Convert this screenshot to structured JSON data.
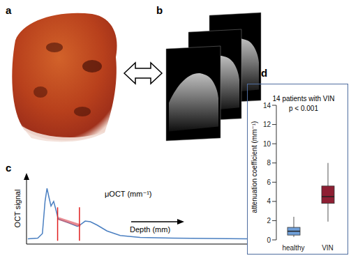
{
  "panels": [
    {
      "label": "a"
    },
    {
      "label": "b"
    }
  ],
  "chart_data": [
    {
      "label": "c",
      "type": "line",
      "y_label": "OCT signal",
      "x_label": "Depth (mm)",
      "annotation": "μOCT (mm⁻¹)",
      "x": [
        0.6,
        5.1,
        7.2,
        8.4,
        9.3,
        10.2,
        11.1,
        12.3,
        13.2,
        14.4,
        18.6,
        23.1,
        24.6,
        26.6,
        29.0,
        32.0,
        36.5,
        42.5,
        51.5,
        66.5,
        100
      ],
      "values": [
        0.8,
        0.9,
        1.6,
        6.5,
        8.5,
        7.1,
        5.8,
        6.5,
        5.4,
        3.8,
        3.3,
        2.7,
        3.0,
        3.5,
        3.4,
        2.9,
        2.0,
        1.3,
        1.0,
        0.9,
        0.8
      ],
      "color": "#4a7fc1",
      "xlim": [
        0,
        100
      ],
      "ylim": [
        0,
        10
      ],
      "tick_labels": false,
      "fit": {
        "x": [
          14.5,
          24.5
        ],
        "values": [
          3.9,
          2.8
        ],
        "color": "#e05a64"
      },
      "window": {
        "x": [
          14.1,
          24.0
        ],
        "y": [
          0.5,
          5.6
        ],
        "color": "#e02020"
      }
    },
    {
      "label": "d",
      "type": "box",
      "title": "14 patients with VIN",
      "subtitle": "p < 0.001",
      "y_label": "attenuation coefficient (mm⁻¹)",
      "categories": [
        "healthy",
        "VIN"
      ],
      "boxes": [
        {
          "min": 0.3,
          "q1": 0.5,
          "median": 0.9,
          "q3": 1.3,
          "max": 2.4
        },
        {
          "min": 1.9,
          "q1": 3.8,
          "median": 4.5,
          "q3": 5.6,
          "max": 8.0
        }
      ],
      "colors": [
        "#6f9fd8",
        "#8e1f33"
      ],
      "ylim": [
        0,
        14
      ],
      "yticks": [
        0,
        2,
        4,
        6,
        8,
        10,
        12,
        14
      ]
    }
  ]
}
